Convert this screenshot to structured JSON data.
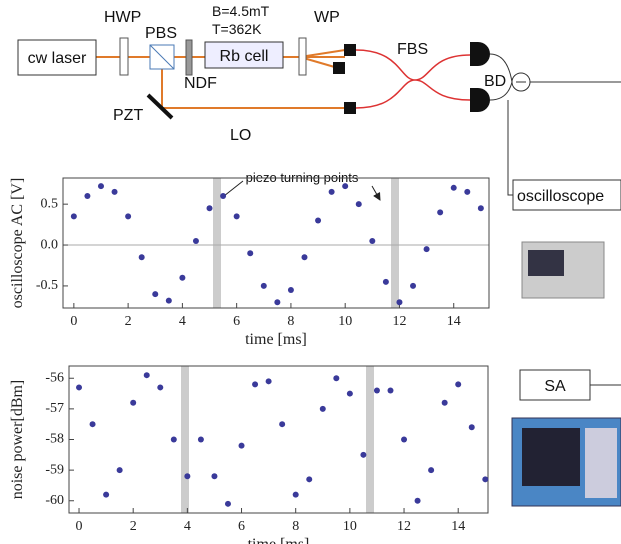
{
  "diagram": {
    "labels": {
      "laser": "cw laser",
      "hwp": "HWP",
      "pbs": "PBS",
      "field": "B=4.5mT",
      "temperature": "T=362K",
      "wp": "WP",
      "cell": "Rb cell",
      "ndf": "NDF",
      "fbs": "FBS",
      "bd": "BD",
      "pzt": "PZT",
      "lo": "LO",
      "oscilloscope": "oscilloscope",
      "sa": "SA"
    }
  },
  "chart_data": [
    {
      "type": "scatter",
      "annotation": "piezo turning points",
      "xlabel": "time [ms]",
      "ylabel": "oscilloscope AC [V]",
      "color": "#3a3a9a",
      "x": [
        0,
        0.5,
        1,
        1.5,
        2,
        2.5,
        3,
        3.5,
        4,
        4.5,
        5,
        5.5,
        6,
        6.5,
        7,
        7.5,
        8,
        8.5,
        9,
        9.5,
        10,
        10.5,
        11,
        11.5,
        12,
        12.5,
        13,
        13.5,
        14,
        14.5,
        15
      ],
      "values": [
        0.35,
        0.6,
        0.72,
        0.65,
        0.35,
        -0.15,
        -0.6,
        -0.68,
        -0.4,
        0.05,
        0.45,
        0.6,
        0.35,
        -0.1,
        -0.5,
        -0.7,
        -0.55,
        -0.15,
        0.3,
        0.65,
        0.72,
        0.5,
        0.05,
        -0.45,
        -0.7,
        -0.5,
        -0.05,
        0.4,
        0.7,
        0.65,
        0.45
      ],
      "xlim": [
        -0.4,
        15.3
      ],
      "ylim": [
        -0.77,
        0.82
      ],
      "xticks": [
        0,
        2,
        4,
        6,
        8,
        10,
        12,
        14
      ],
      "yticks": [
        -0.5,
        {
          "value": 0,
          "label": "0.0"
        },
        0.5
      ],
      "reference_line": 0
    },
    {
      "type": "scatter",
      "xlabel": "time [ms]",
      "ylabel": "noise power[dBm]",
      "color": "#3a3a9a",
      "x": [
        0,
        0.5,
        1,
        1.5,
        2,
        2.5,
        3,
        3.5,
        4,
        4.5,
        5,
        5.5,
        6,
        6.5,
        7,
        7.5,
        8,
        8.5,
        9,
        9.5,
        10,
        10.5,
        11,
        11.5,
        12,
        12.5,
        13,
        13.5,
        14,
        14.5,
        15
      ],
      "values": [
        -56.3,
        -57.5,
        -59.8,
        -59,
        -56.8,
        -55.9,
        -56.3,
        -58,
        -59.2,
        -58,
        -59.2,
        -60.1,
        -58.2,
        -56.2,
        -56.1,
        -57.5,
        -59.8,
        -59.3,
        -57,
        -56,
        -56.5,
        -58.5,
        -56.4,
        -56.4,
        -58,
        -60,
        -59,
        -56.8,
        -56.2,
        -57.6,
        -59.3
      ],
      "xlim": [
        -0.37,
        15.1
      ],
      "ylim": [
        -60.4,
        -55.6
      ],
      "xticks": [
        0,
        2,
        4,
        6,
        8,
        10,
        12,
        14
      ],
      "yticks": [
        -60,
        -59,
        -58,
        -57,
        -56
      ]
    }
  ]
}
